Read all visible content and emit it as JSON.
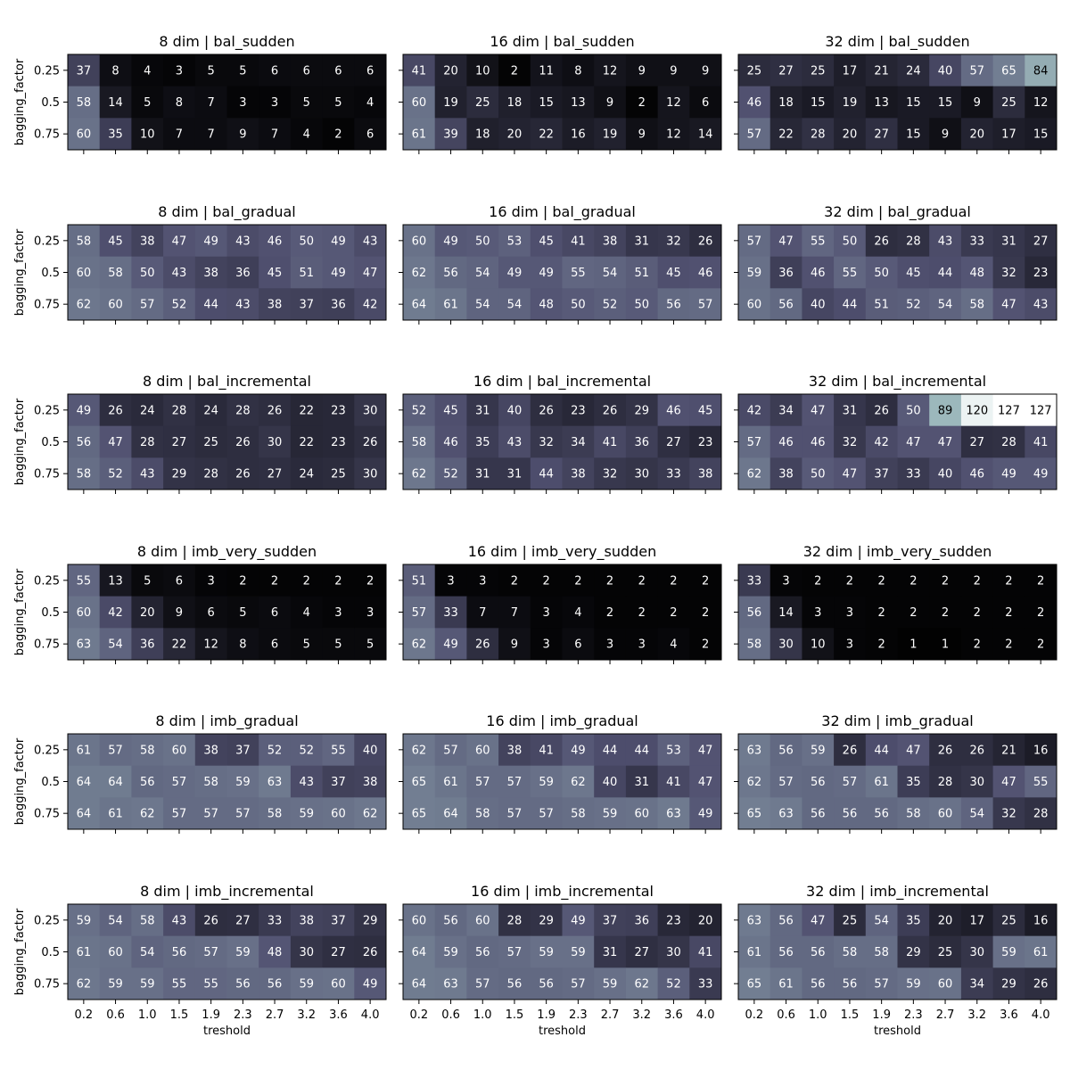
{
  "figure": {
    "ylabel": "bagging_factor",
    "xlabel": "treshold",
    "colors": {
      "background": "#ffffff",
      "colormap": "bone",
      "text_light": "#ffffff",
      "text_dark": "#000000",
      "frame": "#000000"
    }
  },
  "chart_data": [
    {
      "type": "heatmap",
      "title": "8 dim | bal_sudden",
      "xlabel": "",
      "ylabel": "bagging_factor",
      "x_categories": [
        "0.2",
        "0.6",
        "1.0",
        "1.5",
        "1.9",
        "2.3",
        "2.7",
        "3.2",
        "3.6",
        "4.0"
      ],
      "y_categories": [
        "0.25",
        "0.5",
        "0.75"
      ],
      "values": [
        [
          37,
          8,
          4,
          3,
          5,
          5,
          6,
          6,
          6,
          6
        ],
        [
          58,
          14,
          5,
          8,
          7,
          3,
          3,
          5,
          5,
          4
        ],
        [
          60,
          35,
          10,
          7,
          7,
          9,
          7,
          4,
          2,
          6
        ]
      ],
      "vmin": 0,
      "vmax": 127
    },
    {
      "type": "heatmap",
      "title": "16 dim | bal_sudden",
      "xlabel": "",
      "ylabel": "",
      "x_categories": [
        "0.2",
        "0.6",
        "1.0",
        "1.5",
        "1.9",
        "2.3",
        "2.7",
        "3.2",
        "3.6",
        "4.0"
      ],
      "y_categories": [
        "0.25",
        "0.5",
        "0.75"
      ],
      "values": [
        [
          41,
          20,
          10,
          2,
          11,
          8,
          12,
          9,
          9,
          9
        ],
        [
          60,
          19,
          25,
          18,
          15,
          13,
          9,
          2,
          12,
          6
        ],
        [
          61,
          39,
          18,
          20,
          22,
          16,
          19,
          9,
          12,
          14
        ]
      ],
      "vmin": 0,
      "vmax": 127
    },
    {
      "type": "heatmap",
      "title": "32 dim | bal_sudden",
      "xlabel": "",
      "ylabel": "",
      "x_categories": [
        "0.2",
        "0.6",
        "1.0",
        "1.5",
        "1.9",
        "2.3",
        "2.7",
        "3.2",
        "3.6",
        "4.0"
      ],
      "y_categories": [
        "0.25",
        "0.5",
        "0.75"
      ],
      "values": [
        [
          25,
          27,
          25,
          17,
          21,
          24,
          40,
          57,
          65,
          84
        ],
        [
          46,
          18,
          15,
          19,
          13,
          15,
          15,
          9,
          25,
          12
        ],
        [
          57,
          22,
          28,
          20,
          27,
          15,
          9,
          20,
          17,
          15
        ]
      ],
      "vmin": 0,
      "vmax": 127
    },
    {
      "type": "heatmap",
      "title": "8 dim | bal_gradual",
      "xlabel": "",
      "ylabel": "bagging_factor",
      "x_categories": [
        "0.2",
        "0.6",
        "1.0",
        "1.5",
        "1.9",
        "2.3",
        "2.7",
        "3.2",
        "3.6",
        "4.0"
      ],
      "y_categories": [
        "0.25",
        "0.5",
        "0.75"
      ],
      "values": [
        [
          58,
          45,
          38,
          47,
          49,
          43,
          46,
          50,
          49,
          43
        ],
        [
          60,
          58,
          50,
          43,
          38,
          36,
          45,
          51,
          49,
          47
        ],
        [
          62,
          60,
          57,
          52,
          44,
          43,
          38,
          37,
          36,
          42
        ]
      ],
      "vmin": 0,
      "vmax": 127
    },
    {
      "type": "heatmap",
      "title": "16 dim | bal_gradual",
      "xlabel": "",
      "ylabel": "",
      "x_categories": [
        "0.2",
        "0.6",
        "1.0",
        "1.5",
        "1.9",
        "2.3",
        "2.7",
        "3.2",
        "3.6",
        "4.0"
      ],
      "y_categories": [
        "0.25",
        "0.5",
        "0.75"
      ],
      "values": [
        [
          60,
          49,
          50,
          53,
          45,
          41,
          38,
          31,
          32,
          26
        ],
        [
          62,
          56,
          54,
          49,
          49,
          55,
          54,
          51,
          45,
          46
        ],
        [
          64,
          61,
          54,
          54,
          48,
          50,
          52,
          50,
          56,
          57
        ]
      ],
      "vmin": 0,
      "vmax": 127
    },
    {
      "type": "heatmap",
      "title": "32 dim | bal_gradual",
      "xlabel": "",
      "ylabel": "",
      "x_categories": [
        "0.2",
        "0.6",
        "1.0",
        "1.5",
        "1.9",
        "2.3",
        "2.7",
        "3.2",
        "3.6",
        "4.0"
      ],
      "y_categories": [
        "0.25",
        "0.5",
        "0.75"
      ],
      "values": [
        [
          57,
          47,
          55,
          50,
          26,
          28,
          43,
          33,
          31,
          27
        ],
        [
          59,
          36,
          46,
          55,
          50,
          45,
          44,
          48,
          32,
          23
        ],
        [
          60,
          56,
          40,
          44,
          51,
          52,
          54,
          58,
          47,
          43
        ]
      ],
      "vmin": 0,
      "vmax": 127
    },
    {
      "type": "heatmap",
      "title": "8 dim | bal_incremental",
      "xlabel": "",
      "ylabel": "bagging_factor",
      "x_categories": [
        "0.2",
        "0.6",
        "1.0",
        "1.5",
        "1.9",
        "2.3",
        "2.7",
        "3.2",
        "3.6",
        "4.0"
      ],
      "y_categories": [
        "0.25",
        "0.5",
        "0.75"
      ],
      "values": [
        [
          49,
          26,
          24,
          28,
          24,
          28,
          26,
          22,
          23,
          30
        ],
        [
          56,
          47,
          28,
          27,
          25,
          26,
          30,
          22,
          23,
          26
        ],
        [
          58,
          52,
          43,
          29,
          28,
          26,
          27,
          24,
          25,
          30
        ]
      ],
      "vmin": 0,
      "vmax": 127
    },
    {
      "type": "heatmap",
      "title": "16 dim | bal_incremental",
      "xlabel": "",
      "ylabel": "",
      "x_categories": [
        "0.2",
        "0.6",
        "1.0",
        "1.5",
        "1.9",
        "2.3",
        "2.7",
        "3.2",
        "3.6",
        "4.0"
      ],
      "y_categories": [
        "0.25",
        "0.5",
        "0.75"
      ],
      "values": [
        [
          52,
          45,
          31,
          40,
          26,
          23,
          26,
          29,
          46,
          45
        ],
        [
          58,
          46,
          35,
          43,
          32,
          34,
          41,
          36,
          27,
          23
        ],
        [
          62,
          52,
          31,
          31,
          44,
          38,
          32,
          30,
          33,
          38
        ]
      ],
      "vmin": 0,
      "vmax": 127
    },
    {
      "type": "heatmap",
      "title": "32 dim | bal_incremental",
      "xlabel": "",
      "ylabel": "",
      "x_categories": [
        "0.2",
        "0.6",
        "1.0",
        "1.5",
        "1.9",
        "2.3",
        "2.7",
        "3.2",
        "3.6",
        "4.0"
      ],
      "y_categories": [
        "0.25",
        "0.5",
        "0.75"
      ],
      "values": [
        [
          42,
          34,
          47,
          31,
          26,
          50,
          89,
          120,
          127,
          127
        ],
        [
          57,
          46,
          46,
          32,
          42,
          47,
          47,
          27,
          28,
          41
        ],
        [
          62,
          38,
          50,
          47,
          37,
          33,
          40,
          46,
          49,
          49
        ]
      ],
      "vmin": 0,
      "vmax": 127
    },
    {
      "type": "heatmap",
      "title": "8 dim | imb_very_sudden",
      "xlabel": "",
      "ylabel": "bagging_factor",
      "x_categories": [
        "0.2",
        "0.6",
        "1.0",
        "1.5",
        "1.9",
        "2.3",
        "2.7",
        "3.2",
        "3.6",
        "4.0"
      ],
      "y_categories": [
        "0.25",
        "0.5",
        "0.75"
      ],
      "values": [
        [
          55,
          13,
          5,
          6,
          3,
          2,
          2,
          2,
          2,
          2
        ],
        [
          60,
          42,
          20,
          9,
          6,
          5,
          6,
          4,
          3,
          3
        ],
        [
          63,
          54,
          36,
          22,
          12,
          8,
          6,
          5,
          5,
          5
        ]
      ],
      "vmin": 0,
      "vmax": 127
    },
    {
      "type": "heatmap",
      "title": "16 dim | imb_very_sudden",
      "xlabel": "",
      "ylabel": "",
      "x_categories": [
        "0.2",
        "0.6",
        "1.0",
        "1.5",
        "1.9",
        "2.3",
        "2.7",
        "3.2",
        "3.6",
        "4.0"
      ],
      "y_categories": [
        "0.25",
        "0.5",
        "0.75"
      ],
      "values": [
        [
          51,
          3,
          3,
          2,
          2,
          2,
          2,
          2,
          2,
          2
        ],
        [
          57,
          33,
          7,
          7,
          3,
          4,
          2,
          2,
          2,
          2
        ],
        [
          62,
          49,
          26,
          9,
          3,
          6,
          3,
          3,
          4,
          2
        ]
      ],
      "vmin": 0,
      "vmax": 127
    },
    {
      "type": "heatmap",
      "title": "32 dim | imb_very_sudden",
      "xlabel": "",
      "ylabel": "",
      "x_categories": [
        "0.2",
        "0.6",
        "1.0",
        "1.5",
        "1.9",
        "2.3",
        "2.7",
        "3.2",
        "3.6",
        "4.0"
      ],
      "y_categories": [
        "0.25",
        "0.5",
        "0.75"
      ],
      "values": [
        [
          33,
          3,
          2,
          2,
          2,
          2,
          2,
          2,
          2,
          2
        ],
        [
          56,
          14,
          3,
          3,
          2,
          2,
          2,
          2,
          2,
          2
        ],
        [
          58,
          30,
          10,
          3,
          2,
          1,
          1,
          2,
          2,
          2
        ]
      ],
      "vmin": 0,
      "vmax": 127
    },
    {
      "type": "heatmap",
      "title": "8 dim | imb_gradual",
      "xlabel": "",
      "ylabel": "bagging_factor",
      "x_categories": [
        "0.2",
        "0.6",
        "1.0",
        "1.5",
        "1.9",
        "2.3",
        "2.7",
        "3.2",
        "3.6",
        "4.0"
      ],
      "y_categories": [
        "0.25",
        "0.5",
        "0.75"
      ],
      "values": [
        [
          61,
          57,
          58,
          60,
          38,
          37,
          52,
          52,
          55,
          40
        ],
        [
          64,
          64,
          56,
          57,
          58,
          59,
          63,
          43,
          37,
          38
        ],
        [
          64,
          61,
          62,
          57,
          57,
          57,
          58,
          59,
          60,
          62
        ]
      ],
      "vmin": 0,
      "vmax": 127
    },
    {
      "type": "heatmap",
      "title": "16 dim | imb_gradual",
      "xlabel": "",
      "ylabel": "",
      "x_categories": [
        "0.2",
        "0.6",
        "1.0",
        "1.5",
        "1.9",
        "2.3",
        "2.7",
        "3.2",
        "3.6",
        "4.0"
      ],
      "y_categories": [
        "0.25",
        "0.5",
        "0.75"
      ],
      "values": [
        [
          62,
          57,
          60,
          38,
          41,
          49,
          44,
          44,
          53,
          47
        ],
        [
          65,
          61,
          57,
          57,
          59,
          62,
          40,
          31,
          41,
          47
        ],
        [
          65,
          64,
          58,
          57,
          57,
          58,
          59,
          60,
          63,
          49
        ]
      ],
      "vmin": 0,
      "vmax": 127
    },
    {
      "type": "heatmap",
      "title": "32 dim | imb_gradual",
      "xlabel": "",
      "ylabel": "",
      "x_categories": [
        "0.2",
        "0.6",
        "1.0",
        "1.5",
        "1.9",
        "2.3",
        "2.7",
        "3.2",
        "3.6",
        "4.0"
      ],
      "y_categories": [
        "0.25",
        "0.5",
        "0.75"
      ],
      "values": [
        [
          63,
          56,
          59,
          26,
          44,
          47,
          26,
          26,
          21,
          16
        ],
        [
          62,
          57,
          56,
          57,
          61,
          35,
          28,
          30,
          47,
          55
        ],
        [
          65,
          63,
          56,
          56,
          56,
          58,
          60,
          54,
          32,
          28
        ]
      ],
      "vmin": 0,
      "vmax": 127
    },
    {
      "type": "heatmap",
      "title": "8 dim | imb_incremental",
      "xlabel": "treshold",
      "ylabel": "bagging_factor",
      "x_categories": [
        "0.2",
        "0.6",
        "1.0",
        "1.5",
        "1.9",
        "2.3",
        "2.7",
        "3.2",
        "3.6",
        "4.0"
      ],
      "y_categories": [
        "0.25",
        "0.5",
        "0.75"
      ],
      "values": [
        [
          59,
          54,
          58,
          43,
          26,
          27,
          33,
          38,
          37,
          29
        ],
        [
          61,
          60,
          54,
          56,
          57,
          59,
          48,
          30,
          27,
          26
        ],
        [
          62,
          59,
          59,
          55,
          55,
          56,
          56,
          59,
          60,
          49
        ]
      ],
      "vmin": 0,
      "vmax": 127
    },
    {
      "type": "heatmap",
      "title": "16 dim | imb_incremental",
      "xlabel": "treshold",
      "ylabel": "",
      "x_categories": [
        "0.2",
        "0.6",
        "1.0",
        "1.5",
        "1.9",
        "2.3",
        "2.7",
        "3.2",
        "3.6",
        "4.0"
      ],
      "y_categories": [
        "0.25",
        "0.5",
        "0.75"
      ],
      "values": [
        [
          60,
          56,
          60,
          28,
          29,
          49,
          37,
          36,
          23,
          20
        ],
        [
          64,
          59,
          56,
          57,
          59,
          59,
          31,
          27,
          30,
          41
        ],
        [
          64,
          63,
          57,
          56,
          56,
          57,
          59,
          62,
          52,
          33
        ]
      ],
      "vmin": 0,
      "vmax": 127
    },
    {
      "type": "heatmap",
      "title": "32 dim | imb_incremental",
      "xlabel": "treshold",
      "ylabel": "",
      "x_categories": [
        "0.2",
        "0.6",
        "1.0",
        "1.5",
        "1.9",
        "2.3",
        "2.7",
        "3.2",
        "3.6",
        "4.0"
      ],
      "y_categories": [
        "0.25",
        "0.5",
        "0.75"
      ],
      "values": [
        [
          63,
          56,
          47,
          25,
          54,
          35,
          20,
          17,
          25,
          16
        ],
        [
          61,
          56,
          56,
          58,
          58,
          29,
          25,
          30,
          59,
          61
        ],
        [
          65,
          61,
          56,
          56,
          57,
          59,
          60,
          34,
          29,
          26
        ]
      ],
      "vmin": 0,
      "vmax": 127
    }
  ]
}
